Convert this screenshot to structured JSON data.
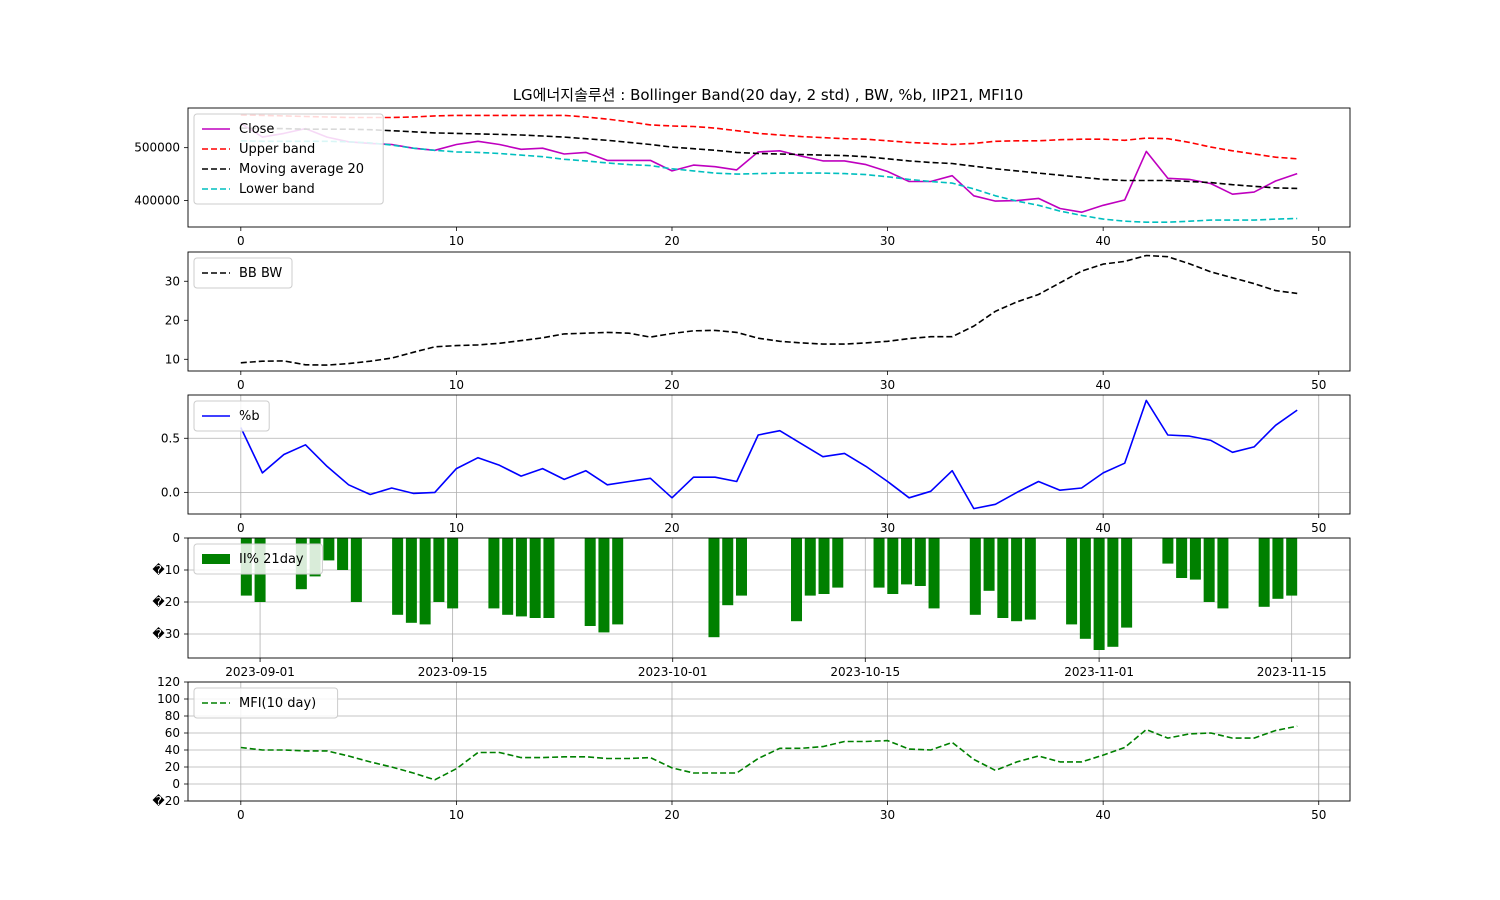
{
  "figure": {
    "title": "LG에너지솔루션 : Bollinger Band(20 day, 2 std) , BW, %b, IIP21, MFI10"
  },
  "colors": {
    "close": "#bf00bf",
    "upper": "#ff0000",
    "ma": "#000000",
    "lower": "#00bfbf",
    "bw": "#000000",
    "pb": "#0000ff",
    "iip": "#008000",
    "mfi": "#008000",
    "grid": "#b0b0b0"
  },
  "chart_data": [
    {
      "type": "line",
      "xlim": [
        -2.45,
        51.45
      ],
      "ylim": [
        350000,
        575000
      ],
      "x_ticks": [
        0,
        10,
        20,
        30,
        40,
        50
      ],
      "y_ticks": [
        400000,
        500000
      ],
      "grid": false,
      "legend_position": "upper left",
      "series": [
        {
          "name": "Close",
          "style": "solid",
          "color_key": "close",
          "values": [
            546000,
            520000,
            527000,
            536000,
            520000,
            511000,
            508000,
            506000,
            499000,
            495000,
            506000,
            512000,
            506000,
            497000,
            499000,
            488000,
            491000,
            476000,
            476000,
            476000,
            456000,
            467000,
            464000,
            458000,
            492000,
            494000,
            484000,
            475000,
            475000,
            468000,
            455000,
            436000,
            436000,
            447000,
            409000,
            399000,
            400000,
            404000,
            385000,
            378000,
            391000,
            401000,
            493000,
            442000,
            440000,
            432000,
            412000,
            416000,
            437000,
            451000
          ]
        },
        {
          "name": "Upper band",
          "style": "dashed",
          "color_key": "upper",
          "values": [
            562000,
            561000,
            560000,
            559000,
            558000,
            557000,
            557000,
            557000,
            558000,
            560000,
            561000,
            561000,
            561000,
            561000,
            561000,
            561000,
            558000,
            554000,
            549000,
            543000,
            541000,
            540000,
            537000,
            532000,
            527000,
            524000,
            521000,
            519000,
            517000,
            516000,
            513000,
            510000,
            508000,
            506000,
            508000,
            512000,
            513000,
            513000,
            515000,
            516000,
            516000,
            514000,
            518000,
            517000,
            510000,
            501000,
            494000,
            488000,
            482000,
            479000
          ]
        },
        {
          "name": "Moving average 20",
          "style": "dashed",
          "color_key": "ma",
          "values": [
            537000,
            536000,
            536000,
            535000,
            535000,
            535000,
            534000,
            532000,
            530000,
            528000,
            527000,
            526000,
            525000,
            524000,
            522000,
            520000,
            517000,
            514000,
            510000,
            506000,
            501000,
            498000,
            495000,
            491000,
            489000,
            488000,
            487000,
            486000,
            485000,
            483000,
            479000,
            475000,
            472000,
            470000,
            465000,
            460000,
            456000,
            452000,
            448000,
            444000,
            440000,
            438000,
            438000,
            438000,
            436000,
            434000,
            430000,
            427000,
            424000,
            423000
          ]
        },
        {
          "name": "Lower band",
          "style": "dashed",
          "color_key": "lower",
          "values": [
            513000,
            512000,
            512000,
            512000,
            512000,
            511000,
            509000,
            505000,
            499000,
            495000,
            492000,
            491000,
            489000,
            486000,
            483000,
            478000,
            475000,
            471000,
            468000,
            466000,
            460000,
            456000,
            452000,
            450000,
            451000,
            452000,
            452000,
            452000,
            451000,
            449000,
            445000,
            440000,
            436000,
            433000,
            422000,
            409000,
            399000,
            391000,
            380000,
            372000,
            365000,
            361000,
            359000,
            359000,
            361000,
            363000,
            363000,
            363000,
            365000,
            366000
          ]
        }
      ]
    },
    {
      "type": "line",
      "xlim": [
        -2.45,
        51.45
      ],
      "ylim": [
        7,
        37.5
      ],
      "x_ticks": [
        0,
        10,
        20,
        30,
        40,
        50
      ],
      "y_ticks": [
        10,
        20,
        30
      ],
      "grid": false,
      "legend_position": "upper left",
      "series": [
        {
          "name": "BB BW",
          "style": "dashed",
          "color_key": "bw",
          "values": [
            9.1,
            9.5,
            9.6,
            8.6,
            8.5,
            8.9,
            9.5,
            10.3,
            11.8,
            13.2,
            13.5,
            13.7,
            14.1,
            14.8,
            15.5,
            16.5,
            16.7,
            16.9,
            16.7,
            15.7,
            16.6,
            17.3,
            17.4,
            16.9,
            15.4,
            14.6,
            14.2,
            13.9,
            13.9,
            14.2,
            14.6,
            15.3,
            15.8,
            15.8,
            18.5,
            22.3,
            24.7,
            26.6,
            29.6,
            32.6,
            34.4,
            35.1,
            36.6,
            36.3,
            34.5,
            32.4,
            30.9,
            29.4,
            27.6,
            26.9
          ]
        }
      ]
    },
    {
      "type": "line",
      "xlim": [
        -2.45,
        51.45
      ],
      "ylim": [
        -0.2,
        0.9
      ],
      "x_ticks": [
        0,
        10,
        20,
        30,
        40,
        50
      ],
      "y_ticks": [
        0.0,
        0.5
      ],
      "y_tick_labels": [
        "0.0",
        "0.5"
      ],
      "grid": true,
      "legend_position": "upper left",
      "series": [
        {
          "name": "%b",
          "style": "solid",
          "color_key": "pb",
          "values": [
            0.6,
            0.18,
            0.35,
            0.44,
            0.24,
            0.07,
            -0.02,
            0.04,
            -0.01,
            0.0,
            0.22,
            0.32,
            0.25,
            0.15,
            0.22,
            0.12,
            0.2,
            0.07,
            0.1,
            0.13,
            -0.05,
            0.14,
            0.14,
            0.1,
            0.53,
            0.57,
            0.45,
            0.33,
            0.36,
            0.24,
            0.1,
            -0.05,
            0.01,
            0.2,
            -0.15,
            -0.11,
            0.0,
            0.1,
            0.02,
            0.04,
            0.18,
            0.27,
            0.85,
            0.53,
            0.52,
            0.48,
            0.37,
            0.42,
            0.62,
            0.76
          ]
        }
      ]
    },
    {
      "type": "bar",
      "ylim": [
        -37.5,
        0
      ],
      "y_ticks": [
        0,
        -10,
        -20,
        -30
      ],
      "y_tick_labels": [
        "0",
        "�10",
        "�20",
        "�30"
      ],
      "x_tick_labels": [
        "2023-09-01",
        "2023-09-15",
        "2023-10-01",
        "2023-10-15",
        "2023-11-01",
        "2023-11-15"
      ],
      "x_tick_dates": [
        "2023-09-01",
        "2023-09-15",
        "2023-10-01",
        "2023-10-15",
        "2023-11-01",
        "2023-11-15"
      ],
      "grid": true,
      "legend_position": "upper left",
      "series": [
        {
          "name": "II% 21day",
          "color_key": "iip",
          "dates": [
            "2023-08-31",
            "2023-09-01",
            "2023-09-04",
            "2023-09-05",
            "2023-09-06",
            "2023-09-07",
            "2023-09-08",
            "2023-09-11",
            "2023-09-12",
            "2023-09-13",
            "2023-09-14",
            "2023-09-15",
            "2023-09-18",
            "2023-09-19",
            "2023-09-20",
            "2023-09-21",
            "2023-09-22",
            "2023-09-25",
            "2023-09-26",
            "2023-09-27",
            "2023-10-04",
            "2023-10-05",
            "2023-10-06",
            "2023-10-10",
            "2023-10-11",
            "2023-10-12",
            "2023-10-13",
            "2023-10-16",
            "2023-10-17",
            "2023-10-18",
            "2023-10-19",
            "2023-10-20",
            "2023-10-23",
            "2023-10-24",
            "2023-10-25",
            "2023-10-26",
            "2023-10-27",
            "2023-10-30",
            "2023-10-31",
            "2023-11-01",
            "2023-11-02",
            "2023-11-03",
            "2023-11-06",
            "2023-11-07",
            "2023-11-08",
            "2023-11-09",
            "2023-11-10",
            "2023-11-13",
            "2023-11-14",
            "2023-11-15"
          ],
          "values": [
            -18,
            -20,
            -16,
            -12,
            -7,
            -10,
            -20,
            -24,
            -26.5,
            -27,
            -20,
            -22,
            -22,
            -24,
            -24.5,
            -25,
            -25,
            -27.5,
            -29.5,
            -27,
            -31,
            -21,
            -18,
            -26,
            -18,
            -17.5,
            -15.5,
            -15.5,
            -17.5,
            -14.5,
            -15,
            -22,
            -24,
            -16.5,
            -25,
            -26,
            -25.5,
            -27,
            -31.5,
            -35,
            -34,
            -28,
            -8,
            -12.5,
            -13,
            -20,
            -22,
            -21.5,
            -19,
            -18
          ]
        }
      ]
    },
    {
      "type": "line",
      "xlim": [
        -2.45,
        51.45
      ],
      "ylim": [
        -20,
        120
      ],
      "x_ticks": [
        0,
        10,
        20,
        30,
        40,
        50
      ],
      "y_ticks": [
        120,
        100,
        80,
        60,
        40,
        20,
        0,
        -20
      ],
      "y_tick_labels": [
        "120",
        "100",
        "80",
        "60",
        "40",
        "20",
        "0",
        "�20"
      ],
      "grid": true,
      "legend_position": "upper left",
      "series": [
        {
          "name": "MFI(10 day)",
          "style": "dashed",
          "color_key": "mfi",
          "values": [
            43,
            40,
            40,
            39,
            39,
            33,
            26,
            20,
            13,
            5,
            18,
            37,
            37,
            31,
            31,
            32,
            32,
            30,
            30,
            31,
            19,
            13,
            13,
            13,
            30,
            42,
            42,
            44,
            50,
            50,
            51,
            41,
            40,
            49,
            29,
            16,
            26,
            33,
            26,
            26,
            34,
            43,
            64,
            54,
            59,
            60,
            54,
            54,
            63,
            68
          ]
        }
      ]
    }
  ]
}
